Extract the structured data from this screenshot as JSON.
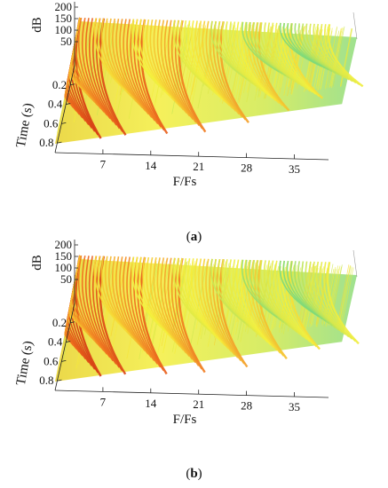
{
  "figure": {
    "captions": [
      "a",
      "b"
    ]
  },
  "chart_data": [
    {
      "panel": "a",
      "type": "surface3d",
      "xlabel": "F/Fs",
      "ylabel": "Time (s)",
      "zlabel": "dB",
      "x_ticks": [
        "7",
        "14",
        "21",
        "28",
        "35"
      ],
      "y_ticks": [
        "0.2",
        "0.4",
        "0.6",
        "0.8"
      ],
      "z_ticks": [
        "200",
        "150",
        "100",
        "50"
      ],
      "xlim": [
        0,
        40
      ],
      "ylim": [
        0,
        0.9
      ],
      "zlim": [
        0,
        200
      ],
      "harmonic_ridges_x": [
        0,
        3.5,
        9.5,
        15,
        21,
        26.5,
        31,
        36.5
      ],
      "harmonic_ridge_decay_time_s": [
        0.85,
        0.82,
        0.8,
        0.78,
        0.7,
        0.6,
        0.5,
        0.4
      ],
      "colormap": [
        "#7ed97a",
        "#d8e84a",
        "#f6ef3a",
        "#f5b02a",
        "#ef6a1c",
        "#d63a12"
      ]
    },
    {
      "panel": "b",
      "type": "surface3d",
      "xlabel": "F/Fs",
      "ylabel": "Time (s)",
      "zlabel": "dB",
      "x_ticks": [
        "7",
        "14",
        "21",
        "28",
        "35"
      ],
      "y_ticks": [
        "0.2",
        "0.4",
        "0.6",
        "0.8"
      ],
      "z_ticks": [
        "200",
        "150",
        "100",
        "50"
      ],
      "xlim": [
        0,
        40
      ],
      "ylim": [
        0,
        0.9
      ],
      "zlim": [
        0,
        200
      ],
      "harmonic_ridges_x": [
        0,
        3.5,
        9.5,
        15,
        21,
        26.5,
        31,
        36.5
      ],
      "harmonic_ridge_decay_time_s": [
        0.85,
        0.83,
        0.82,
        0.8,
        0.75,
        0.68,
        0.6,
        0.55
      ],
      "colormap": [
        "#7ed97a",
        "#d8e84a",
        "#f6ef3a",
        "#f5b02a",
        "#ef6a1c",
        "#d63a12"
      ]
    }
  ]
}
